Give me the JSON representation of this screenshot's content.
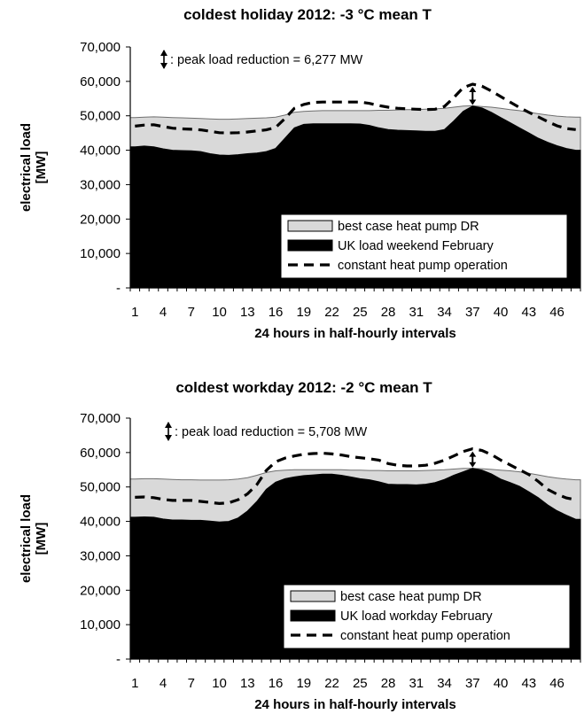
{
  "chart_data": [
    {
      "type": "area",
      "title": "coldest holiday 2012: -3 °C mean T",
      "xlabel": "24 hours in half-hourly intervals",
      "ylabel": "electrical load [MW]",
      "ylim": [
        0,
        70000
      ],
      "y_ticks": [
        "-",
        "10,000",
        "20,000",
        "30,000",
        "40,000",
        "50,000",
        "60,000",
        "70,000"
      ],
      "x_ticks": [
        "1",
        "4",
        "7",
        "10",
        "13",
        "16",
        "19",
        "22",
        "25",
        "28",
        "31",
        "34",
        "37",
        "40",
        "43",
        "46"
      ],
      "annotation": ": peak load reduction = 6,277 MW",
      "peak_interval": 37,
      "legend_position": "bottom-right",
      "colors": {
        "best_case": "#d9d9d9",
        "uk_load": "#000000",
        "constant": "#000000",
        "grid": "#000000"
      },
      "x": [
        1,
        2,
        3,
        4,
        5,
        6,
        7,
        8,
        9,
        10,
        11,
        12,
        13,
        14,
        15,
        16,
        17,
        18,
        19,
        20,
        21,
        22,
        23,
        24,
        25,
        26,
        27,
        28,
        29,
        30,
        31,
        32,
        33,
        34,
        35,
        36,
        37,
        38,
        39,
        40,
        41,
        42,
        43,
        44,
        45,
        46,
        47,
        48
      ],
      "series": [
        {
          "name": "best case heat pump DR",
          "style": "area",
          "values": [
            49500,
            49600,
            49700,
            49600,
            49500,
            49400,
            49300,
            49200,
            49100,
            49000,
            49000,
            49100,
            49200,
            49300,
            49400,
            49600,
            50200,
            51000,
            51300,
            51400,
            51500,
            51500,
            51500,
            51500,
            51500,
            51500,
            51600,
            51600,
            51700,
            51800,
            51800,
            51900,
            52000,
            52200,
            52500,
            52800,
            52900,
            52700,
            52500,
            52200,
            51800,
            51500,
            51000,
            50600,
            50200,
            49900,
            49700,
            49600
          ]
        },
        {
          "name": "UK load weekend February",
          "style": "area",
          "values": [
            41000,
            41200,
            41000,
            40400,
            40000,
            39900,
            39800,
            39600,
            39000,
            38600,
            38500,
            38700,
            39000,
            39200,
            39600,
            40500,
            43500,
            46500,
            47500,
            47700,
            47700,
            47700,
            47700,
            47700,
            47600,
            47200,
            46500,
            46000,
            45800,
            45700,
            45600,
            45500,
            45500,
            46000,
            48500,
            51300,
            52800,
            52300,
            51000,
            49500,
            48000,
            46500,
            45000,
            43500,
            42300,
            41300,
            40500,
            40000
          ]
        },
        {
          "name": "constant heat pump operation",
          "style": "dashed-line",
          "values": [
            47000,
            47300,
            47400,
            46900,
            46400,
            46200,
            46100,
            45900,
            45500,
            45100,
            45000,
            45100,
            45300,
            45600,
            45900,
            46600,
            49200,
            52200,
            53300,
            53900,
            54000,
            54000,
            54000,
            54000,
            54000,
            53600,
            53000,
            52500,
            52200,
            52000,
            51900,
            51800,
            51900,
            52700,
            55300,
            58200,
            59200,
            58600,
            57200,
            55600,
            54000,
            52400,
            51000,
            49700,
            48300,
            47100,
            46300,
            46000
          ]
        }
      ]
    },
    {
      "type": "area",
      "title": "coldest workday 2012: -2 °C mean T",
      "xlabel": "24 hours in half-hourly intervals",
      "ylabel": "electrical load [MW]",
      "ylim": [
        0,
        70000
      ],
      "y_ticks": [
        "-",
        "10,000",
        "20,000",
        "30,000",
        "40,000",
        "50,000",
        "60,000",
        "70,000"
      ],
      "x_ticks": [
        "1",
        "4",
        "7",
        "10",
        "13",
        "16",
        "19",
        "22",
        "25",
        "28",
        "31",
        "34",
        "37",
        "40",
        "43",
        "46"
      ],
      "annotation": ": peak load reduction = 5,708 MW",
      "peak_interval": 37,
      "legend_position": "bottom-right",
      "colors": {
        "best_case": "#d9d9d9",
        "uk_load": "#000000",
        "constant": "#000000",
        "grid": "#000000"
      },
      "x": [
        1,
        2,
        3,
        4,
        5,
        6,
        7,
        8,
        9,
        10,
        11,
        12,
        13,
        14,
        15,
        16,
        17,
        18,
        19,
        20,
        21,
        22,
        23,
        24,
        25,
        26,
        27,
        28,
        29,
        30,
        31,
        32,
        33,
        34,
        35,
        36,
        37,
        38,
        39,
        40,
        41,
        42,
        43,
        44,
        45,
        46,
        47,
        48
      ],
      "series": [
        {
          "name": "best case heat pump DR",
          "style": "area",
          "values": [
            52300,
            52400,
            52400,
            52300,
            52200,
            52100,
            52100,
            52000,
            52000,
            52000,
            52100,
            52300,
            52700,
            53400,
            54200,
            54700,
            54900,
            55000,
            55000,
            55000,
            55000,
            55000,
            55000,
            54900,
            54900,
            54800,
            54800,
            54700,
            54700,
            54700,
            54700,
            54800,
            54900,
            55000,
            55200,
            55400,
            55400,
            55300,
            55100,
            54900,
            54700,
            54400,
            54000,
            53500,
            53000,
            52600,
            52300,
            52100
          ]
        },
        {
          "name": "UK load workday February",
          "style": "area",
          "values": [
            41200,
            41300,
            41200,
            40700,
            40400,
            40400,
            40300,
            40300,
            40100,
            39800,
            40000,
            41000,
            43000,
            45800,
            49300,
            51400,
            52400,
            52900,
            53300,
            53500,
            53700,
            53700,
            53400,
            52900,
            52400,
            52100,
            51500,
            50800,
            50700,
            50700,
            50600,
            50800,
            51300,
            52200,
            53400,
            54400,
            55400,
            54900,
            53800,
            52300,
            51300,
            50200,
            48600,
            46900,
            44800,
            43100,
            41800,
            40600
          ]
        },
        {
          "name": "constant heat pump operation",
          "style": "dashed-line",
          "values": [
            47000,
            47100,
            46900,
            46400,
            46100,
            46100,
            46100,
            45800,
            45500,
            45200,
            45400,
            46300,
            48000,
            50700,
            54800,
            57300,
            58400,
            59000,
            59500,
            59700,
            59800,
            59600,
            59300,
            58800,
            58500,
            58200,
            57800,
            56800,
            56300,
            56100,
            56100,
            56300,
            56900,
            57800,
            59000,
            60300,
            61100,
            60600,
            59400,
            57800,
            56400,
            55000,
            53600,
            51600,
            49300,
            47900,
            46800,
            46300
          ]
        }
      ]
    }
  ]
}
